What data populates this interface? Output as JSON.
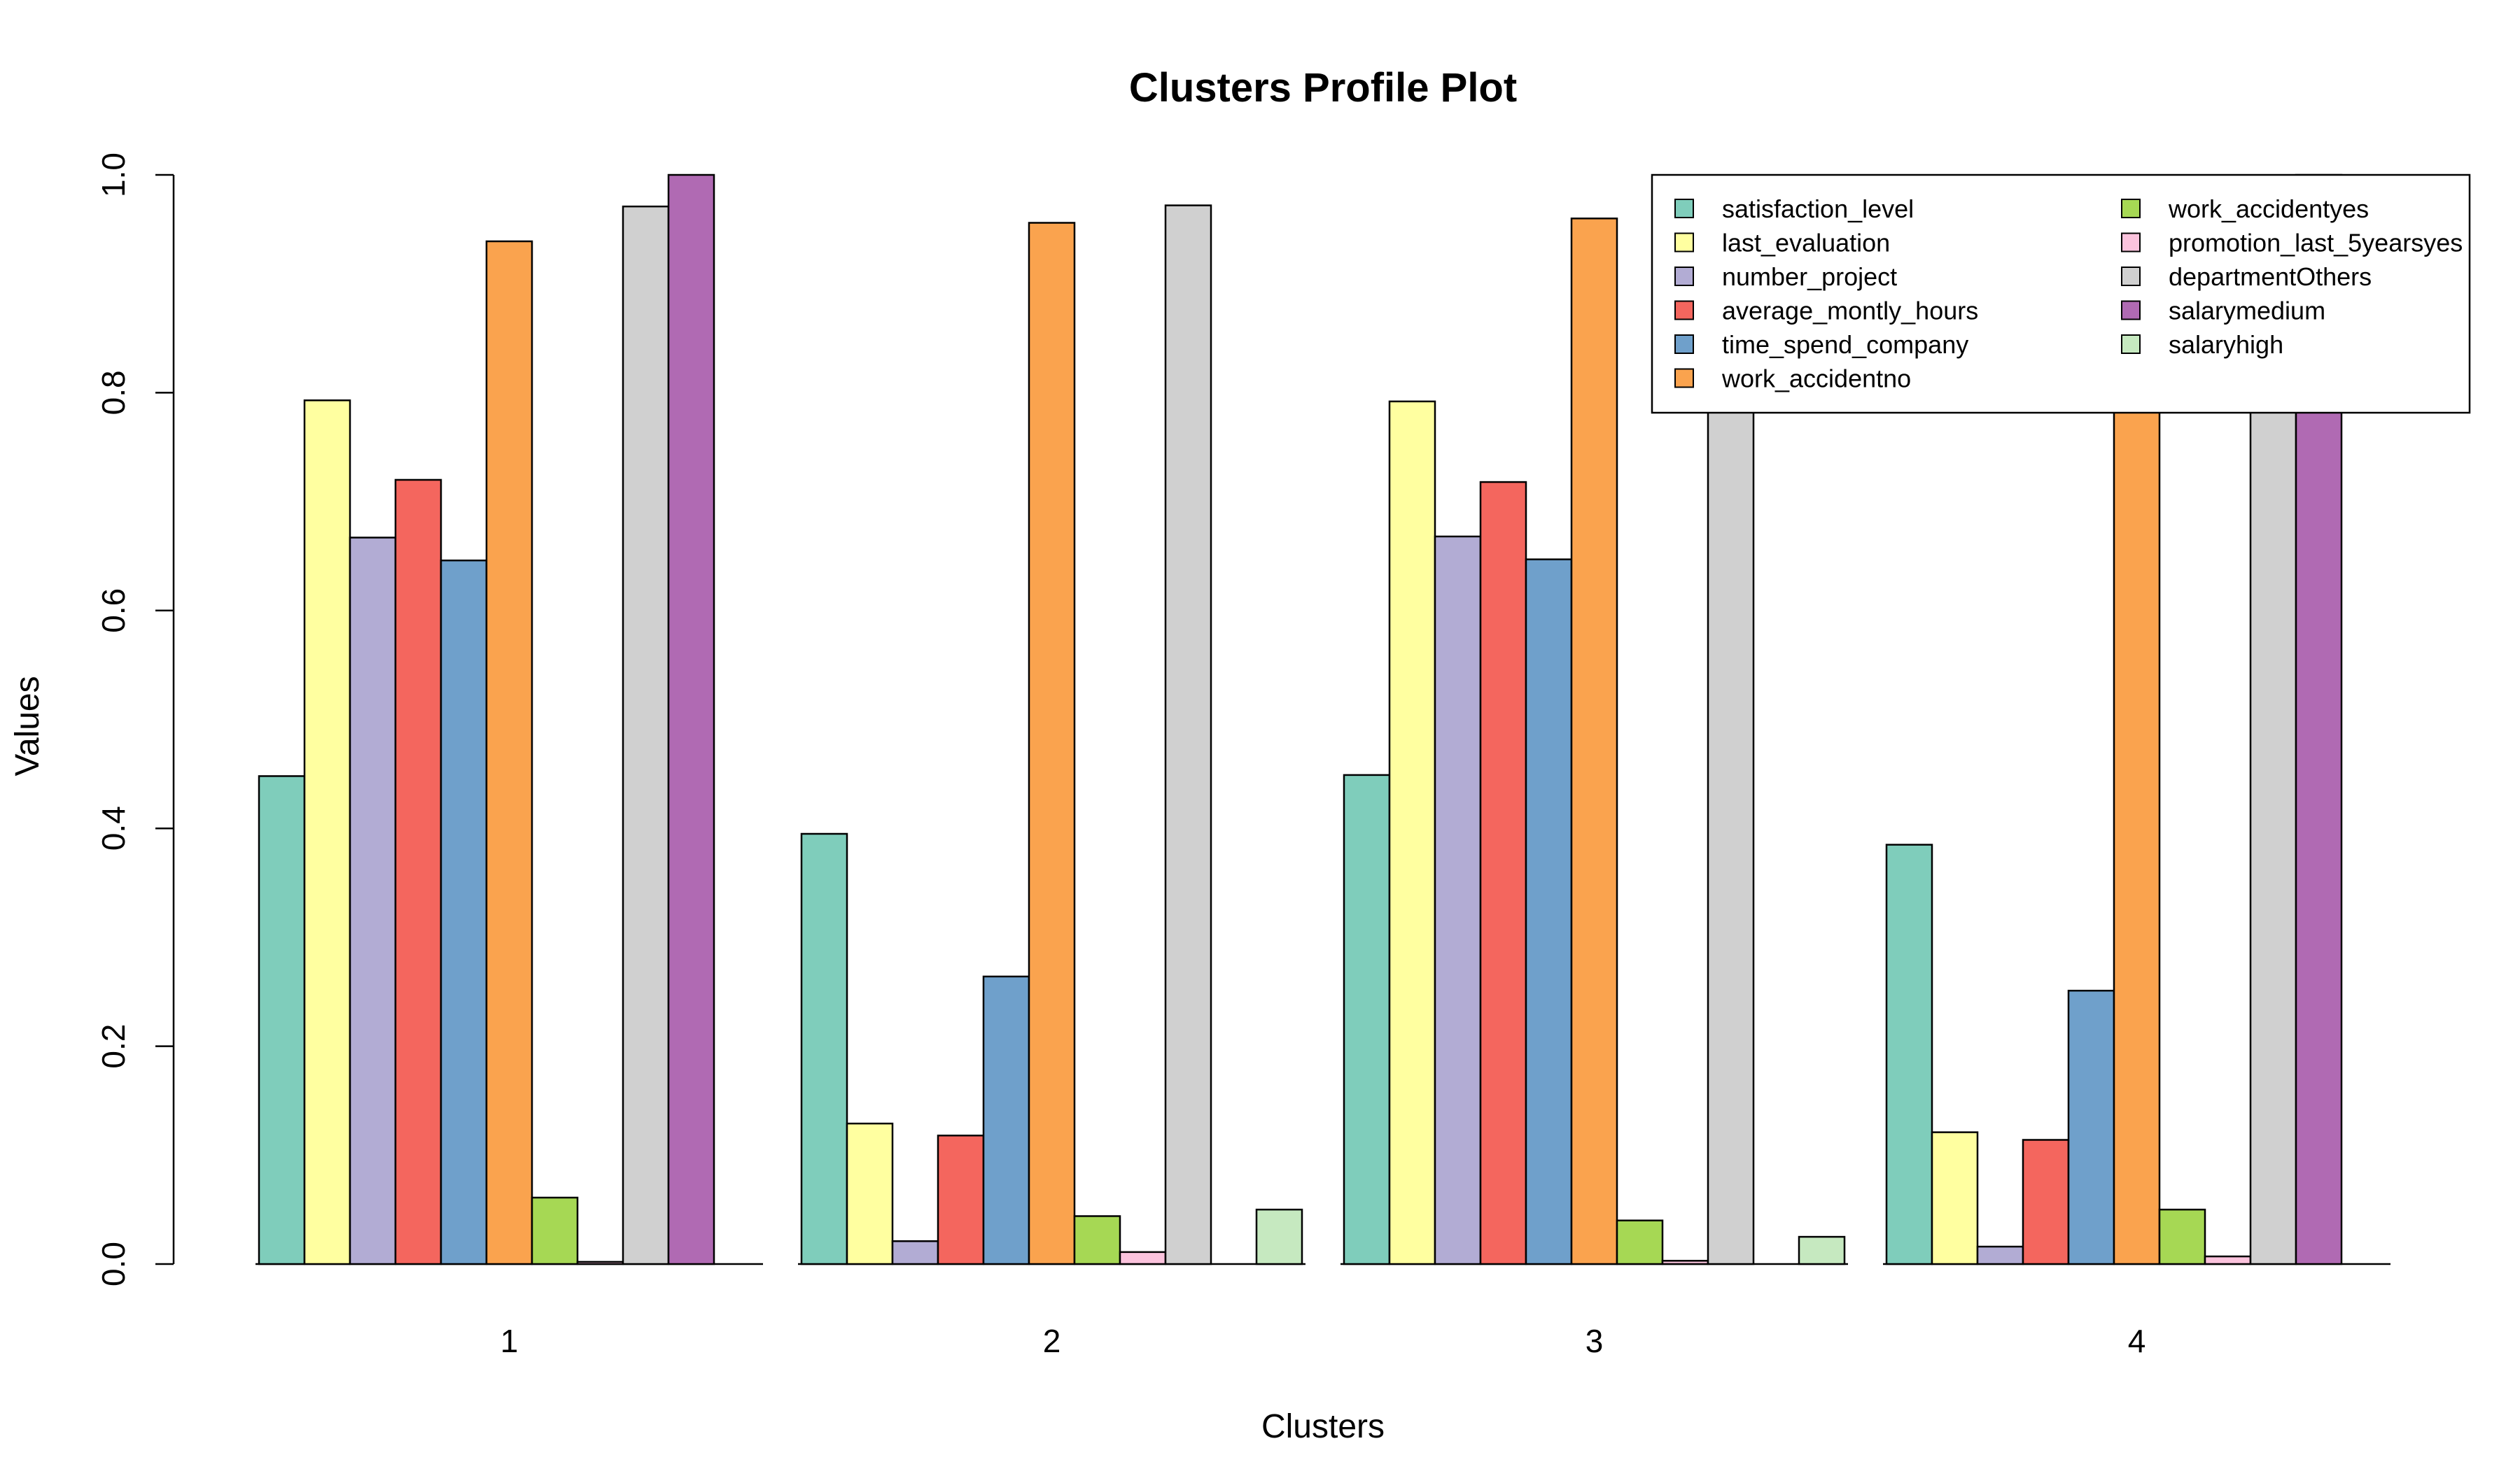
{
  "chart_data": {
    "type": "bar",
    "title": "Clusters Profile Plot",
    "xlabel": "Clusters",
    "ylabel": "Values",
    "categories": [
      "1",
      "2",
      "3",
      "4"
    ],
    "ylim": [
      0,
      1
    ],
    "yticks": [
      "0.0",
      "0.2",
      "0.4",
      "0.6",
      "0.8",
      "1.0"
    ],
    "grid": false,
    "legend_position": "top-right",
    "series": [
      {
        "name": "satisfaction_level",
        "color": "#7fcdbb",
        "values": [
          0.448,
          0.395,
          0.449,
          0.385
        ]
      },
      {
        "name": "last_evaluation",
        "color": "#ffffa0",
        "values": [
          0.793,
          0.129,
          0.792,
          0.121
        ]
      },
      {
        "name": "number_project",
        "color": "#b2acd4",
        "values": [
          0.667,
          0.021,
          0.668,
          0.016
        ]
      },
      {
        "name": "average_montly_hours",
        "color": "#f4665e",
        "values": [
          0.72,
          0.118,
          0.718,
          0.114
        ]
      },
      {
        "name": "time_spend_company",
        "color": "#6fa0cb",
        "values": [
          0.646,
          0.264,
          0.647,
          0.251
        ]
      },
      {
        "name": "work_accidentno",
        "color": "#faa34e",
        "values": [
          0.939,
          0.956,
          0.96,
          0.95
        ]
      },
      {
        "name": "work_accidentyes",
        "color": "#a6d854",
        "values": [
          0.061,
          0.044,
          0.04,
          0.05
        ]
      },
      {
        "name": "promotion_last_5yearsyes",
        "color": "#fbc3dd",
        "values": [
          0.002,
          0.011,
          0.003,
          0.007
        ]
      },
      {
        "name": "departmentOthers",
        "color": "#d0d0d0",
        "values": [
          0.971,
          0.972,
          0.97,
          0.97
        ]
      },
      {
        "name": "salarymedium",
        "color": "#b06ab3",
        "values": [
          1.0,
          0.0,
          0.0,
          1.0
        ]
      },
      {
        "name": "salaryhigh",
        "color": "#c6e9c0",
        "values": [
          0.0,
          0.05,
          0.025,
          0.0
        ]
      }
    ]
  }
}
